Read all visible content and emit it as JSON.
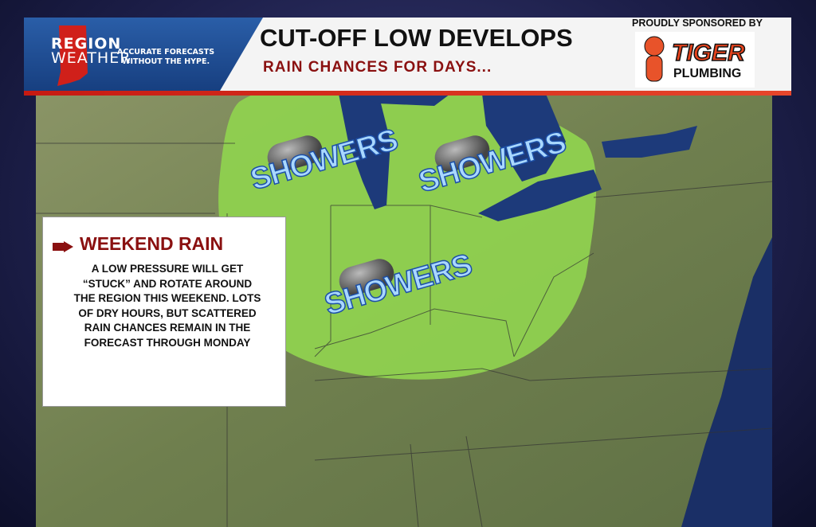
{
  "header": {
    "brand_line1": "REGION",
    "brand_line2": "WEATHER",
    "tagline_1": "ACCURATE FORECASTS",
    "tagline_2": "WITHOUT THE HYPE.",
    "title": "CUT-OFF LOW DEVELOPS",
    "subtitle": "RAIN CHANCES FOR DAYS...",
    "sponsor_label": "PROUDLY SPONSORED BY",
    "sponsor_name_1": "TIGER",
    "sponsor_name_2": "PLUMBING"
  },
  "info_box": {
    "title": "WEEKEND RAIN",
    "body": "A LOW PRESSURE WILL GET “STUCK” AND ROTATE AROUND THE REGION THIS WEEKEND. LOTS OF DRY HOURS, BUT SCATTERED RAIN CHANCES REMAIN IN THE FORECAST THROUGH MONDAY"
  },
  "map": {
    "labels": [
      "SHOWERS",
      "SHOWERS",
      "SHOWERS"
    ],
    "colors": {
      "rain_area": "#8fd14f",
      "land": "#7d8a5a",
      "water": "#1d3a7a",
      "accent": "#8a1010"
    }
  }
}
